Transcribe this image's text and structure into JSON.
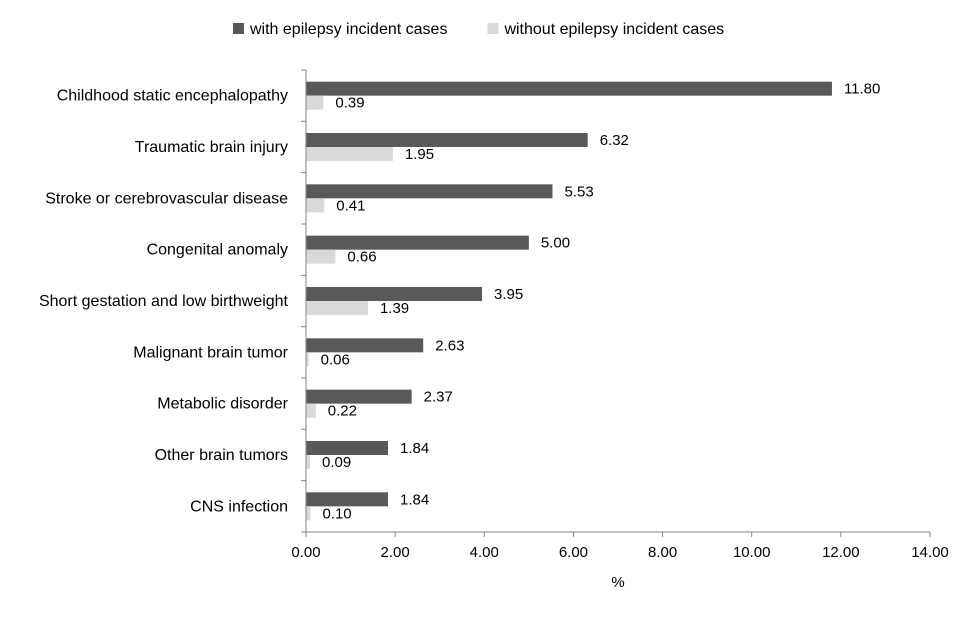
{
  "chart_data": {
    "type": "bar",
    "orientation": "horizontal",
    "categories": [
      "Childhood static encephalopathy",
      "Traumatic brain injury",
      "Stroke or cerebrovascular disease",
      "Congenital anomaly",
      "Short gestation and low birthweight",
      "Malignant brain tumor",
      "Metabolic disorder",
      "Other brain tumors",
      "CNS infection"
    ],
    "series": [
      {
        "name": "with epilepsy incident cases",
        "color": "#595959",
        "values": [
          11.8,
          6.32,
          5.53,
          5.0,
          3.95,
          2.63,
          2.37,
          1.84,
          1.84
        ],
        "labels": [
          "11.80",
          "6.32",
          "5.53",
          "5.00",
          "3.95",
          "2.63",
          "2.37",
          "1.84",
          "1.84"
        ]
      },
      {
        "name": "without epilepsy incident cases",
        "color": "#d9d9d9",
        "values": [
          0.39,
          1.95,
          0.41,
          0.66,
          1.39,
          0.06,
          0.22,
          0.09,
          0.1
        ],
        "labels": [
          "0.39",
          "1.95",
          "0.41",
          "0.66",
          "1.39",
          "0.06",
          "0.22",
          "0.09",
          "0.10"
        ]
      }
    ],
    "xlabel": "%",
    "xlim": [
      0,
      14
    ],
    "xticks": [
      0,
      2,
      4,
      6,
      8,
      10,
      12,
      14
    ],
    "xtick_labels": [
      "0.00",
      "2.00",
      "4.00",
      "6.00",
      "8.00",
      "10.00",
      "12.00",
      "14.00"
    ],
    "grid": false,
    "legend_position": "top"
  }
}
